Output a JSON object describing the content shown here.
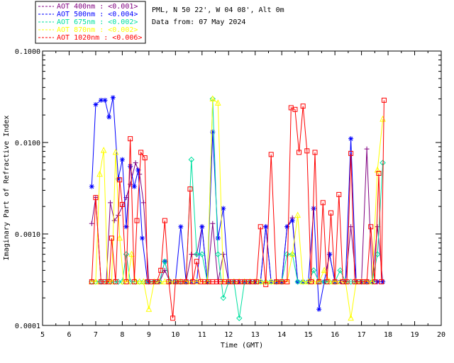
{
  "header": {
    "site": "PML, N 50 22', W 04 08', Alt 0m",
    "date": "Data from: 07 May 2024"
  },
  "chart_data": {
    "type": "line",
    "title": "",
    "xlabel": "Time (GMT)",
    "ylabel": "Imaginary Part of Refractive Index",
    "xlim": [
      5,
      20
    ],
    "ylim": [
      0.0001,
      0.1
    ],
    "yscale": "log",
    "xticks": [
      "5",
      "6",
      "7",
      "8",
      "9",
      "10",
      "11",
      "12",
      "13",
      "14",
      "15",
      "16",
      "17",
      "18",
      "19",
      "20"
    ],
    "yticks": [
      "0.0001",
      "0.0010",
      "0.0100",
      "0.1000"
    ],
    "legend_position": "top-left",
    "series": [
      {
        "name": "AOT  400nm : <0.001>",
        "color": "#800080",
        "marker": "plus",
        "x": [
          6.85,
          7.0,
          7.2,
          7.4,
          7.55,
          7.7,
          7.85,
          8.0,
          8.15,
          8.3,
          8.5,
          8.65,
          8.8,
          9.0,
          9.2,
          9.4,
          9.6,
          9.8,
          10.0,
          10.2,
          10.4,
          10.6,
          10.8,
          11.0,
          11.2,
          11.4,
          11.6,
          11.8,
          12.0,
          12.2,
          12.4,
          12.6,
          12.8,
          13.0,
          13.2,
          13.4,
          13.6,
          13.8,
          14.0,
          14.2,
          14.4,
          14.6,
          14.8,
          15.0,
          15.2,
          15.4,
          15.6,
          15.8,
          16.0,
          16.2,
          16.4,
          16.6,
          16.8,
          17.0,
          17.2,
          17.4,
          17.6,
          17.8
        ],
        "y": [
          0.0013,
          0.0025,
          0.0003,
          0.0003,
          0.0022,
          0.0014,
          0.0016,
          0.002,
          0.0025,
          0.0035,
          0.006,
          0.0045,
          0.0022,
          0.0003,
          0.0003,
          0.0003,
          0.0004,
          0.0003,
          0.0003,
          0.0003,
          0.0003,
          0.0006,
          0.0006,
          0.0012,
          0.0003,
          0.0013,
          0.0003,
          0.0006,
          0.0003,
          0.0003,
          0.0003,
          0.0003,
          0.0003,
          0.0003,
          0.0003,
          0.0012,
          0.0003,
          0.0003,
          0.0003,
          0.0012,
          0.0015,
          0.0003,
          0.0003,
          0.0003,
          0.0003,
          0.0003,
          0.0003,
          0.0006,
          0.0003,
          0.0003,
          0.0003,
          0.0012,
          0.0003,
          0.0003,
          0.0085,
          0.0003,
          0.0012,
          0.0003
        ]
      },
      {
        "name": "AOT  500nm : <0.004>",
        "color": "#0000ff",
        "marker": "star",
        "x": [
          6.85,
          7.0,
          7.2,
          7.35,
          7.5,
          7.65,
          7.85,
          8.0,
          8.15,
          8.3,
          8.45,
          8.6,
          8.75,
          8.95,
          9.2,
          9.4,
          9.6,
          9.8,
          10.0,
          10.2,
          10.4,
          10.6,
          10.8,
          11.0,
          11.2,
          11.4,
          11.6,
          11.8,
          12.0,
          12.2,
          12.4,
          12.6,
          12.8,
          13.0,
          13.2,
          13.4,
          13.6,
          13.8,
          14.0,
          14.2,
          14.4,
          14.6,
          14.8,
          15.0,
          15.2,
          15.4,
          15.6,
          15.8,
          16.0,
          16.2,
          16.4,
          16.6,
          16.8,
          17.0,
          17.2,
          17.4,
          17.6,
          17.8
        ],
        "y": [
          0.0033,
          0.026,
          0.029,
          0.029,
          0.019,
          0.031,
          0.004,
          0.0065,
          0.0012,
          0.0055,
          0.0033,
          0.005,
          0.0009,
          0.0003,
          0.0003,
          0.0003,
          0.0005,
          0.0003,
          0.0003,
          0.0012,
          0.0003,
          0.0003,
          0.0003,
          0.0012,
          0.0003,
          0.013,
          0.0009,
          0.0019,
          0.0003,
          0.0003,
          0.0003,
          0.0003,
          0.0003,
          0.0003,
          0.0003,
          0.0012,
          0.0003,
          0.0003,
          0.0003,
          0.0012,
          0.0014,
          0.0003,
          0.0003,
          0.0003,
          0.0019,
          0.00015,
          0.0003,
          0.0006,
          0.0003,
          0.0003,
          0.0003,
          0.011,
          0.0003,
          0.0003,
          0.0003,
          0.0003,
          0.0003,
          0.0003
        ]
      },
      {
        "name": "AOT  675nm : <0.002>",
        "color": "#00e0a0",
        "marker": "diamond",
        "x": [
          6.85,
          7.0,
          7.2,
          7.4,
          7.55,
          7.7,
          7.85,
          8.0,
          8.15,
          8.3,
          8.5,
          8.65,
          8.8,
          9.0,
          9.2,
          9.4,
          9.6,
          9.8,
          10.0,
          10.2,
          10.4,
          10.6,
          10.8,
          11.0,
          11.2,
          11.4,
          11.6,
          11.8,
          12.0,
          12.2,
          12.4,
          12.6,
          12.8,
          13.0,
          13.2,
          13.4,
          13.6,
          13.8,
          14.0,
          14.2,
          14.4,
          14.6,
          14.8,
          15.0,
          15.2,
          15.4,
          15.6,
          15.8,
          16.0,
          16.2,
          16.4,
          16.6,
          16.8,
          17.0,
          17.2,
          17.4,
          17.6,
          17.8
        ],
        "y": [
          0.0003,
          0.0003,
          0.0003,
          0.0003,
          0.0003,
          0.0003,
          0.0003,
          0.0003,
          0.0006,
          0.0003,
          0.0003,
          0.0003,
          0.0003,
          0.0003,
          0.0003,
          0.0003,
          0.0005,
          0.0003,
          0.0003,
          0.0003,
          0.0003,
          0.0065,
          0.0006,
          0.0006,
          0.0003,
          0.03,
          0.0006,
          0.0002,
          0.0003,
          0.0003,
          0.00012,
          0.0003,
          0.0003,
          0.0003,
          0.0003,
          0.0003,
          0.0003,
          0.0003,
          0.0003,
          0.0006,
          0.0006,
          0.0003,
          0.0003,
          0.0003,
          0.0004,
          0.0003,
          0.0003,
          0.0003,
          0.0003,
          0.0004,
          0.0003,
          0.0003,
          0.0003,
          0.0003,
          0.0003,
          0.0003,
          0.0006,
          0.006
        ]
      },
      {
        "name": "AOT  870nm : <0.002>",
        "color": "#ffff00",
        "marker": "triangle",
        "x": [
          6.85,
          7.0,
          7.15,
          7.3,
          7.45,
          7.6,
          7.75,
          7.9,
          8.05,
          8.2,
          8.35,
          8.5,
          8.65,
          8.8,
          9.0,
          9.2,
          9.4,
          9.6,
          9.8,
          10.0,
          10.2,
          10.4,
          10.6,
          10.8,
          11.0,
          11.2,
          11.4,
          11.6,
          11.8,
          12.0,
          12.2,
          12.4,
          12.6,
          12.8,
          13.0,
          13.2,
          13.4,
          13.6,
          13.8,
          14.0,
          14.2,
          14.4,
          14.6,
          14.8,
          15.0,
          15.2,
          15.4,
          15.6,
          15.8,
          16.0,
          16.2,
          16.4,
          16.6,
          16.8,
          17.0,
          17.2,
          17.4,
          17.6,
          17.8
        ],
        "y": [
          0.0003,
          0.0003,
          0.0045,
          0.0082,
          0.0003,
          0.0003,
          0.0078,
          0.0009,
          0.0003,
          0.0003,
          0.0006,
          0.0003,
          0.0003,
          0.0003,
          0.00015,
          0.0003,
          0.0003,
          0.0003,
          0.0003,
          0.0003,
          0.0003,
          0.0003,
          0.0003,
          0.0003,
          0.0003,
          0.0003,
          0.03,
          0.027,
          0.0003,
          0.0003,
          0.0003,
          0.0003,
          0.0003,
          0.0003,
          0.0003,
          0.0003,
          0.0003,
          0.0003,
          0.0003,
          0.0003,
          0.0003,
          0.0006,
          0.0016,
          0.0003,
          0.0003,
          0.0003,
          0.0003,
          0.0004,
          0.0003,
          0.0003,
          0.0003,
          0.0003,
          0.00012,
          0.0003,
          0.0003,
          0.0003,
          0.0003,
          0.005,
          0.018
        ]
      },
      {
        "name": "AOT 1020nm : <0.006>",
        "color": "#ff0000",
        "marker": "square",
        "x": [
          6.85,
          7.0,
          7.2,
          7.35,
          7.5,
          7.6,
          7.75,
          7.9,
          8.0,
          8.15,
          8.3,
          8.45,
          8.55,
          8.7,
          8.85,
          8.95,
          9.1,
          9.3,
          9.45,
          9.6,
          9.75,
          9.9,
          10.0,
          10.2,
          10.4,
          10.55,
          10.65,
          10.8,
          10.95,
          11.1,
          11.25,
          11.4,
          11.55,
          11.7,
          11.85,
          12.0,
          12.15,
          12.3,
          12.45,
          12.6,
          12.75,
          12.9,
          13.05,
          13.2,
          13.4,
          13.6,
          13.8,
          14.0,
          14.2,
          14.35,
          14.5,
          14.65,
          14.8,
          14.95,
          15.1,
          15.25,
          15.4,
          15.55,
          15.7,
          15.85,
          16.0,
          16.15,
          16.3,
          16.45,
          16.6,
          16.75,
          16.9,
          17.05,
          17.2,
          17.35,
          17.5,
          17.65,
          17.75,
          17.85
        ],
        "y": [
          0.0003,
          0.0025,
          0.0003,
          0.0003,
          0.0003,
          0.0009,
          0.0003,
          0.0039,
          0.0021,
          0.0003,
          0.011,
          0.0003,
          0.0014,
          0.0078,
          0.0068,
          0.0003,
          0.0003,
          0.0003,
          0.0004,
          0.0014,
          0.0003,
          0.00012,
          0.0003,
          0.0003,
          0.0003,
          0.0031,
          0.0003,
          0.0005,
          0.0003,
          0.0003,
          0.0003,
          0.0003,
          0.0003,
          0.0003,
          0.0003,
          0.0003,
          0.0003,
          0.0003,
          0.0003,
          0.0003,
          0.0003,
          0.0003,
          0.0003,
          0.0012,
          0.00028,
          0.0074,
          0.0003,
          0.0003,
          0.0003,
          0.024,
          0.023,
          0.0078,
          0.025,
          0.0081,
          0.0003,
          0.0078,
          0.0003,
          0.0022,
          0.0003,
          0.0017,
          0.0003,
          0.0027,
          0.0003,
          0.0003,
          0.0076,
          0.0003,
          0.0003,
          0.0003,
          0.0003,
          0.0012,
          0.0003,
          0.0046,
          0.0003,
          0.029
        ]
      }
    ]
  }
}
